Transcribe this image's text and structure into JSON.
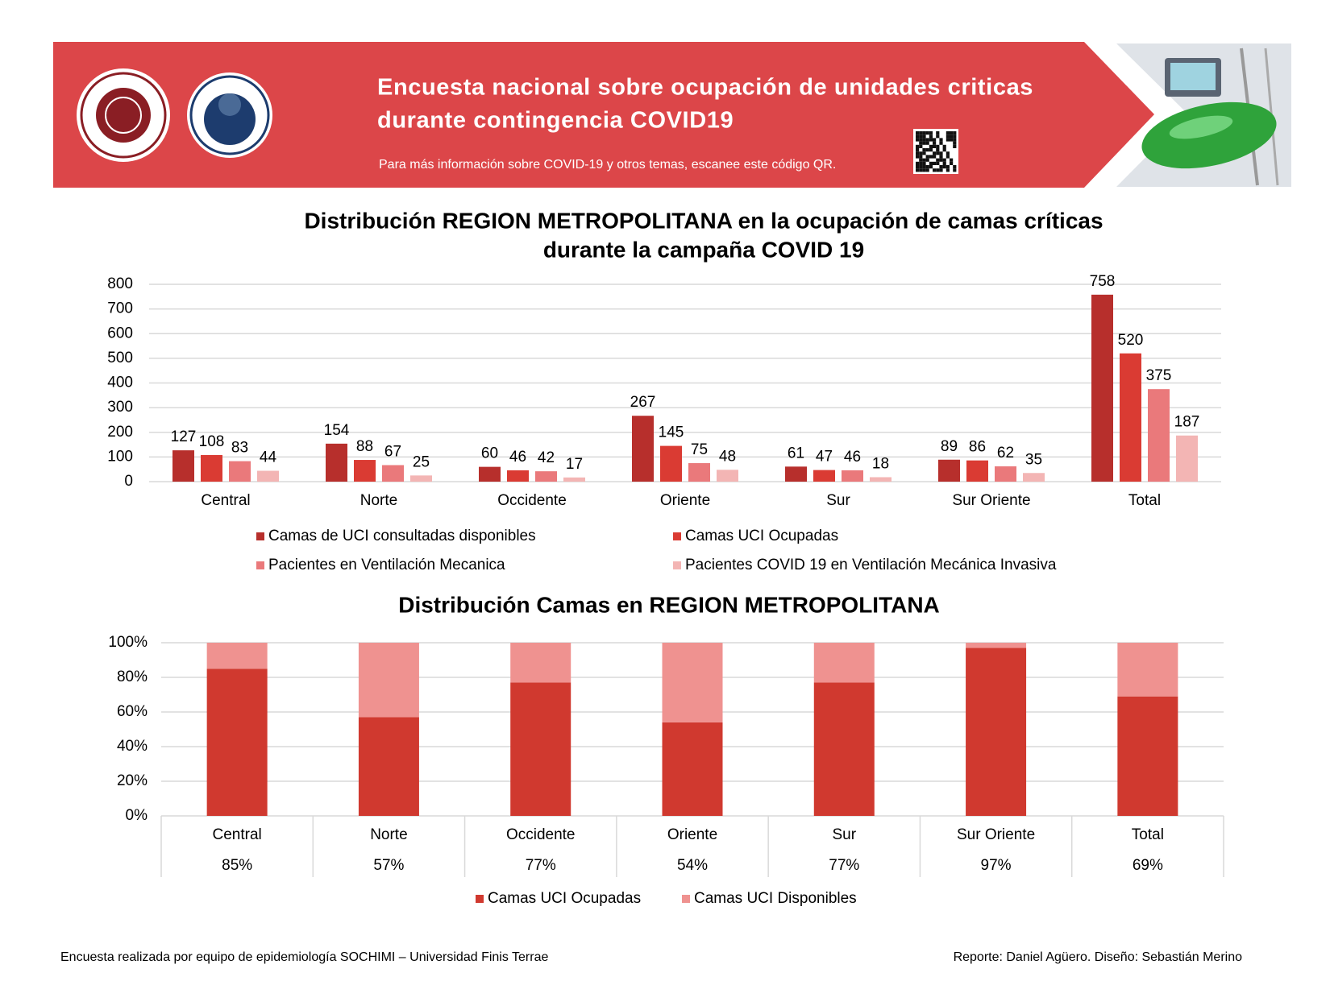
{
  "header": {
    "title_line1": "Encuesta nacional sobre ocupación de unidades criticas",
    "title_line2": "durante contingencia COVID19",
    "subtitle": "Para más información sobre COVID-19 y otros temas, escanee este código QR."
  },
  "chart_data": [
    {
      "type": "bar",
      "title_line1": "Distribución REGION METROPOLITANA en la ocupación de camas críticas",
      "title_line2": "durante la campaña COVID 19",
      "categories": [
        "Central",
        "Norte",
        "Occidente",
        "Oriente",
        "Sur",
        "Sur Oriente",
        "Total"
      ],
      "series": [
        {
          "name": "Camas de UCI consultadas disponibles",
          "color": "#b72f2c",
          "values": [
            127,
            154,
            60,
            267,
            61,
            89,
            758
          ]
        },
        {
          "name": "Camas UCI Ocupadas",
          "color": "#da3b33",
          "values": [
            108,
            88,
            46,
            145,
            47,
            86,
            520
          ]
        },
        {
          "name": "Pacientes en Ventilación Mecanica",
          "color": "#ea797b",
          "values": [
            83,
            67,
            42,
            75,
            46,
            62,
            375
          ]
        },
        {
          "name": "Pacientes COVID 19 en Ventilación Mecánica Invasiva",
          "color": "#f3b5b4",
          "values": [
            44,
            25,
            17,
            48,
            18,
            35,
            187
          ]
        }
      ],
      "ylim": [
        0,
        800
      ],
      "yticks": [
        0,
        100,
        200,
        300,
        400,
        500,
        600,
        700,
        800
      ],
      "grid": true
    },
    {
      "type": "stacked_bar",
      "title": "Distribución Camas en REGION METROPOLITANA",
      "categories": [
        "Central",
        "Norte",
        "Occidente",
        "Oriente",
        "Sur",
        "Sur Oriente",
        "Total"
      ],
      "series": [
        {
          "name": "Camas UCI Ocupadas",
          "color": "#d0392f",
          "values": [
            85,
            57,
            77,
            54,
            77,
            97,
            69
          ],
          "value_labels": [
            "85%",
            "57%",
            "77%",
            "54%",
            "77%",
            "97%",
            "69%"
          ]
        },
        {
          "name": "Camas UCI Disponibles",
          "color": "#ef9290",
          "values": [
            15,
            43,
            23,
            46,
            23,
            3,
            31
          ]
        }
      ],
      "ylim": [
        0,
        100
      ],
      "yticks": [
        {
          "value": 0,
          "label": "0%"
        },
        {
          "value": 20,
          "label": "20%"
        },
        {
          "value": 40,
          "label": "40%"
        },
        {
          "value": 60,
          "label": "60%"
        },
        {
          "value": 80,
          "label": "80%"
        },
        {
          "value": 100,
          "label": "100%"
        }
      ],
      "grid": true
    }
  ],
  "footer": {
    "left": "Encuesta realizada por equipo de epidemiología SOCHIMI – Universidad Finis Terrae",
    "right": "Reporte: Daniel Agüero. Diseño: Sebastián Merino"
  }
}
